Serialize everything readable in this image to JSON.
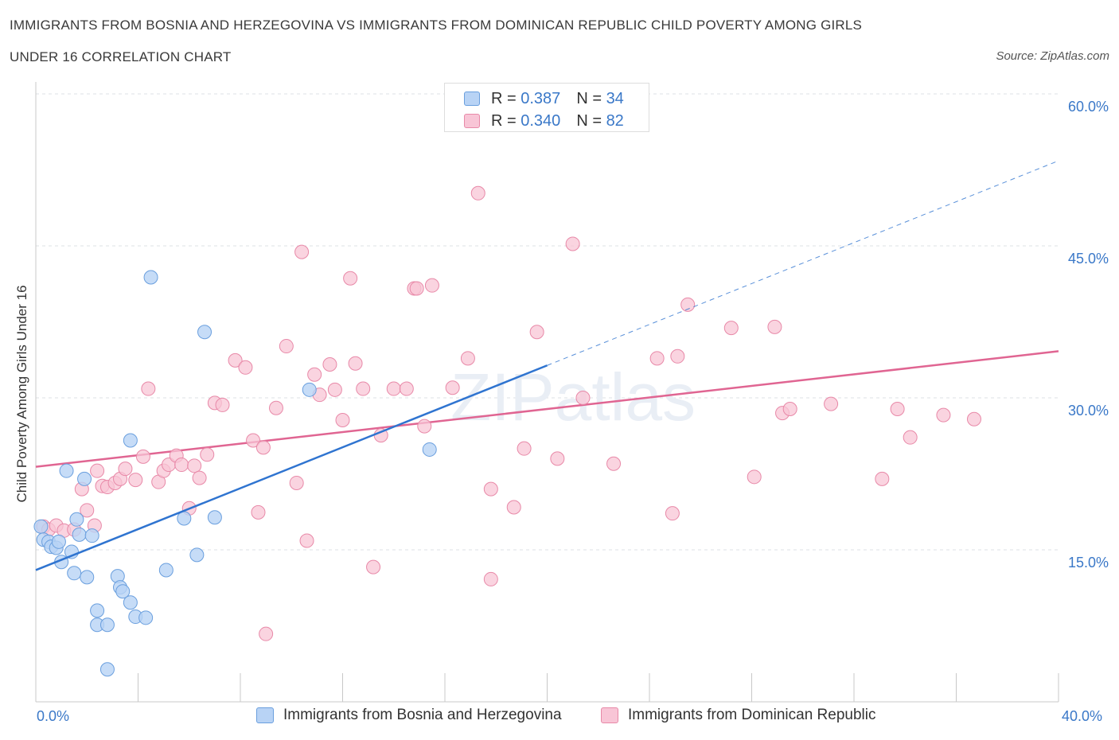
{
  "title_line1": "IMMIGRANTS FROM BOSNIA AND HERZEGOVINA VS IMMIGRANTS FROM DOMINICAN REPUBLIC CHILD POVERTY AMONG GIRLS",
  "title_line2": "UNDER 16 CORRELATION CHART",
  "source": "Source: ZipAtlas.com",
  "watermark": "ZIPatlas",
  "legend": {
    "r_label": "R =",
    "n_label": "N =",
    "series1": {
      "r": "0.387",
      "n": "34"
    },
    "series2": {
      "r": "0.340",
      "n": "82"
    }
  },
  "colors": {
    "series1_fill": "#b8d3f5",
    "series1_stroke": "#6a9fde",
    "series1_line": "#2f74d0",
    "series2_fill": "#f8c5d6",
    "series2_stroke": "#e889a8",
    "series2_line": "#e06592",
    "tick_label": "#3a78c8"
  },
  "chart_data": {
    "type": "scatter",
    "xlabel": "",
    "ylabel": "Child Poverty Among Girls Under 16",
    "xlim": [
      0,
      40
    ],
    "ylim": [
      0,
      60
    ],
    "x_tick_labels": [
      "0.0%",
      "40.0%"
    ],
    "y_ticks": [
      15,
      30,
      45,
      60
    ],
    "y_tick_labels": [
      "15.0%",
      "30.0%",
      "45.0%",
      "60.0%"
    ],
    "grid": true,
    "legend_position": "bottom",
    "series": [
      {
        "name": "Immigrants from Bosnia and Herzegovina",
        "points": [
          [
            0.2,
            17.3
          ],
          [
            0.3,
            16.0
          ],
          [
            0.5,
            15.8
          ],
          [
            0.6,
            15.3
          ],
          [
            0.8,
            15.2
          ],
          [
            0.9,
            15.8
          ],
          [
            1.0,
            13.8
          ],
          [
            1.4,
            14.8
          ],
          [
            1.5,
            12.7
          ],
          [
            1.2,
            22.8
          ],
          [
            1.6,
            18.0
          ],
          [
            1.7,
            16.5
          ],
          [
            1.9,
            22.0
          ],
          [
            2.0,
            12.3
          ],
          [
            2.2,
            16.4
          ],
          [
            2.4,
            9.0
          ],
          [
            2.4,
            7.6
          ],
          [
            2.8,
            7.6
          ],
          [
            2.8,
            3.2
          ],
          [
            3.2,
            12.4
          ],
          [
            3.3,
            11.3
          ],
          [
            3.4,
            10.9
          ],
          [
            3.7,
            9.8
          ],
          [
            3.9,
            8.4
          ],
          [
            4.3,
            8.3
          ],
          [
            3.7,
            25.8
          ],
          [
            4.5,
            41.9
          ],
          [
            5.1,
            13.0
          ],
          [
            5.8,
            18.1
          ],
          [
            6.3,
            14.5
          ],
          [
            6.6,
            36.5
          ],
          [
            7.0,
            18.2
          ],
          [
            10.7,
            30.8
          ],
          [
            15.4,
            24.9
          ]
        ],
        "trend": {
          "x": [
            0,
            20
          ],
          "y": [
            13.0,
            33.2
          ]
        }
      },
      {
        "name": "Immigrants from Dominican Republic",
        "points": [
          [
            0.3,
            17.3
          ],
          [
            0.5,
            17.0
          ],
          [
            0.8,
            17.4
          ],
          [
            1.1,
            16.9
          ],
          [
            1.5,
            17.0
          ],
          [
            1.8,
            21.0
          ],
          [
            2.0,
            18.9
          ],
          [
            2.3,
            17.4
          ],
          [
            2.4,
            22.8
          ],
          [
            2.6,
            21.3
          ],
          [
            2.8,
            21.2
          ],
          [
            3.1,
            21.6
          ],
          [
            3.3,
            22.0
          ],
          [
            3.5,
            23.0
          ],
          [
            3.9,
            21.9
          ],
          [
            4.2,
            24.2
          ],
          [
            4.4,
            30.9
          ],
          [
            4.8,
            21.7
          ],
          [
            5.0,
            22.8
          ],
          [
            5.2,
            23.4
          ],
          [
            5.5,
            24.3
          ],
          [
            5.7,
            23.4
          ],
          [
            6.0,
            19.1
          ],
          [
            6.2,
            23.3
          ],
          [
            6.4,
            22.1
          ],
          [
            6.7,
            24.4
          ],
          [
            7.0,
            29.5
          ],
          [
            7.3,
            29.3
          ],
          [
            7.8,
            33.7
          ],
          [
            8.2,
            33.0
          ],
          [
            8.5,
            25.8
          ],
          [
            8.7,
            18.7
          ],
          [
            8.9,
            25.1
          ],
          [
            9.0,
            6.7
          ],
          [
            9.4,
            29.0
          ],
          [
            9.8,
            35.1
          ],
          [
            10.2,
            21.6
          ],
          [
            10.4,
            44.4
          ],
          [
            10.6,
            15.9
          ],
          [
            10.9,
            32.3
          ],
          [
            11.1,
            30.3
          ],
          [
            11.5,
            33.3
          ],
          [
            11.7,
            30.8
          ],
          [
            12.0,
            27.8
          ],
          [
            12.3,
            41.8
          ],
          [
            12.5,
            33.4
          ],
          [
            12.8,
            30.9
          ],
          [
            13.2,
            13.3
          ],
          [
            13.5,
            26.3
          ],
          [
            14.0,
            30.9
          ],
          [
            14.5,
            30.9
          ],
          [
            14.8,
            40.8
          ],
          [
            14.9,
            40.8
          ],
          [
            15.5,
            41.1
          ],
          [
            15.2,
            27.2
          ],
          [
            16.3,
            31.0
          ],
          [
            16.9,
            33.9
          ],
          [
            17.3,
            50.2
          ],
          [
            17.8,
            12.1
          ],
          [
            17.8,
            21.0
          ],
          [
            18.7,
            19.2
          ],
          [
            19.1,
            25.0
          ],
          [
            19.6,
            36.5
          ],
          [
            20.4,
            24.0
          ],
          [
            21.0,
            45.2
          ],
          [
            21.4,
            30.0
          ],
          [
            22.6,
            23.5
          ],
          [
            24.9,
            18.6
          ],
          [
            24.3,
            33.9
          ],
          [
            25.1,
            34.1
          ],
          [
            25.5,
            39.2
          ],
          [
            27.2,
            36.9
          ],
          [
            28.1,
            22.2
          ],
          [
            28.9,
            37.0
          ],
          [
            29.2,
            28.5
          ],
          [
            29.5,
            28.9
          ],
          [
            31.1,
            29.4
          ],
          [
            33.1,
            22.0
          ],
          [
            33.7,
            28.9
          ],
          [
            34.2,
            26.1
          ],
          [
            35.5,
            28.3
          ],
          [
            36.7,
            27.9
          ]
        ],
        "trend": {
          "x": [
            0,
            40
          ],
          "y": [
            23.2,
            34.6
          ]
        }
      }
    ]
  }
}
